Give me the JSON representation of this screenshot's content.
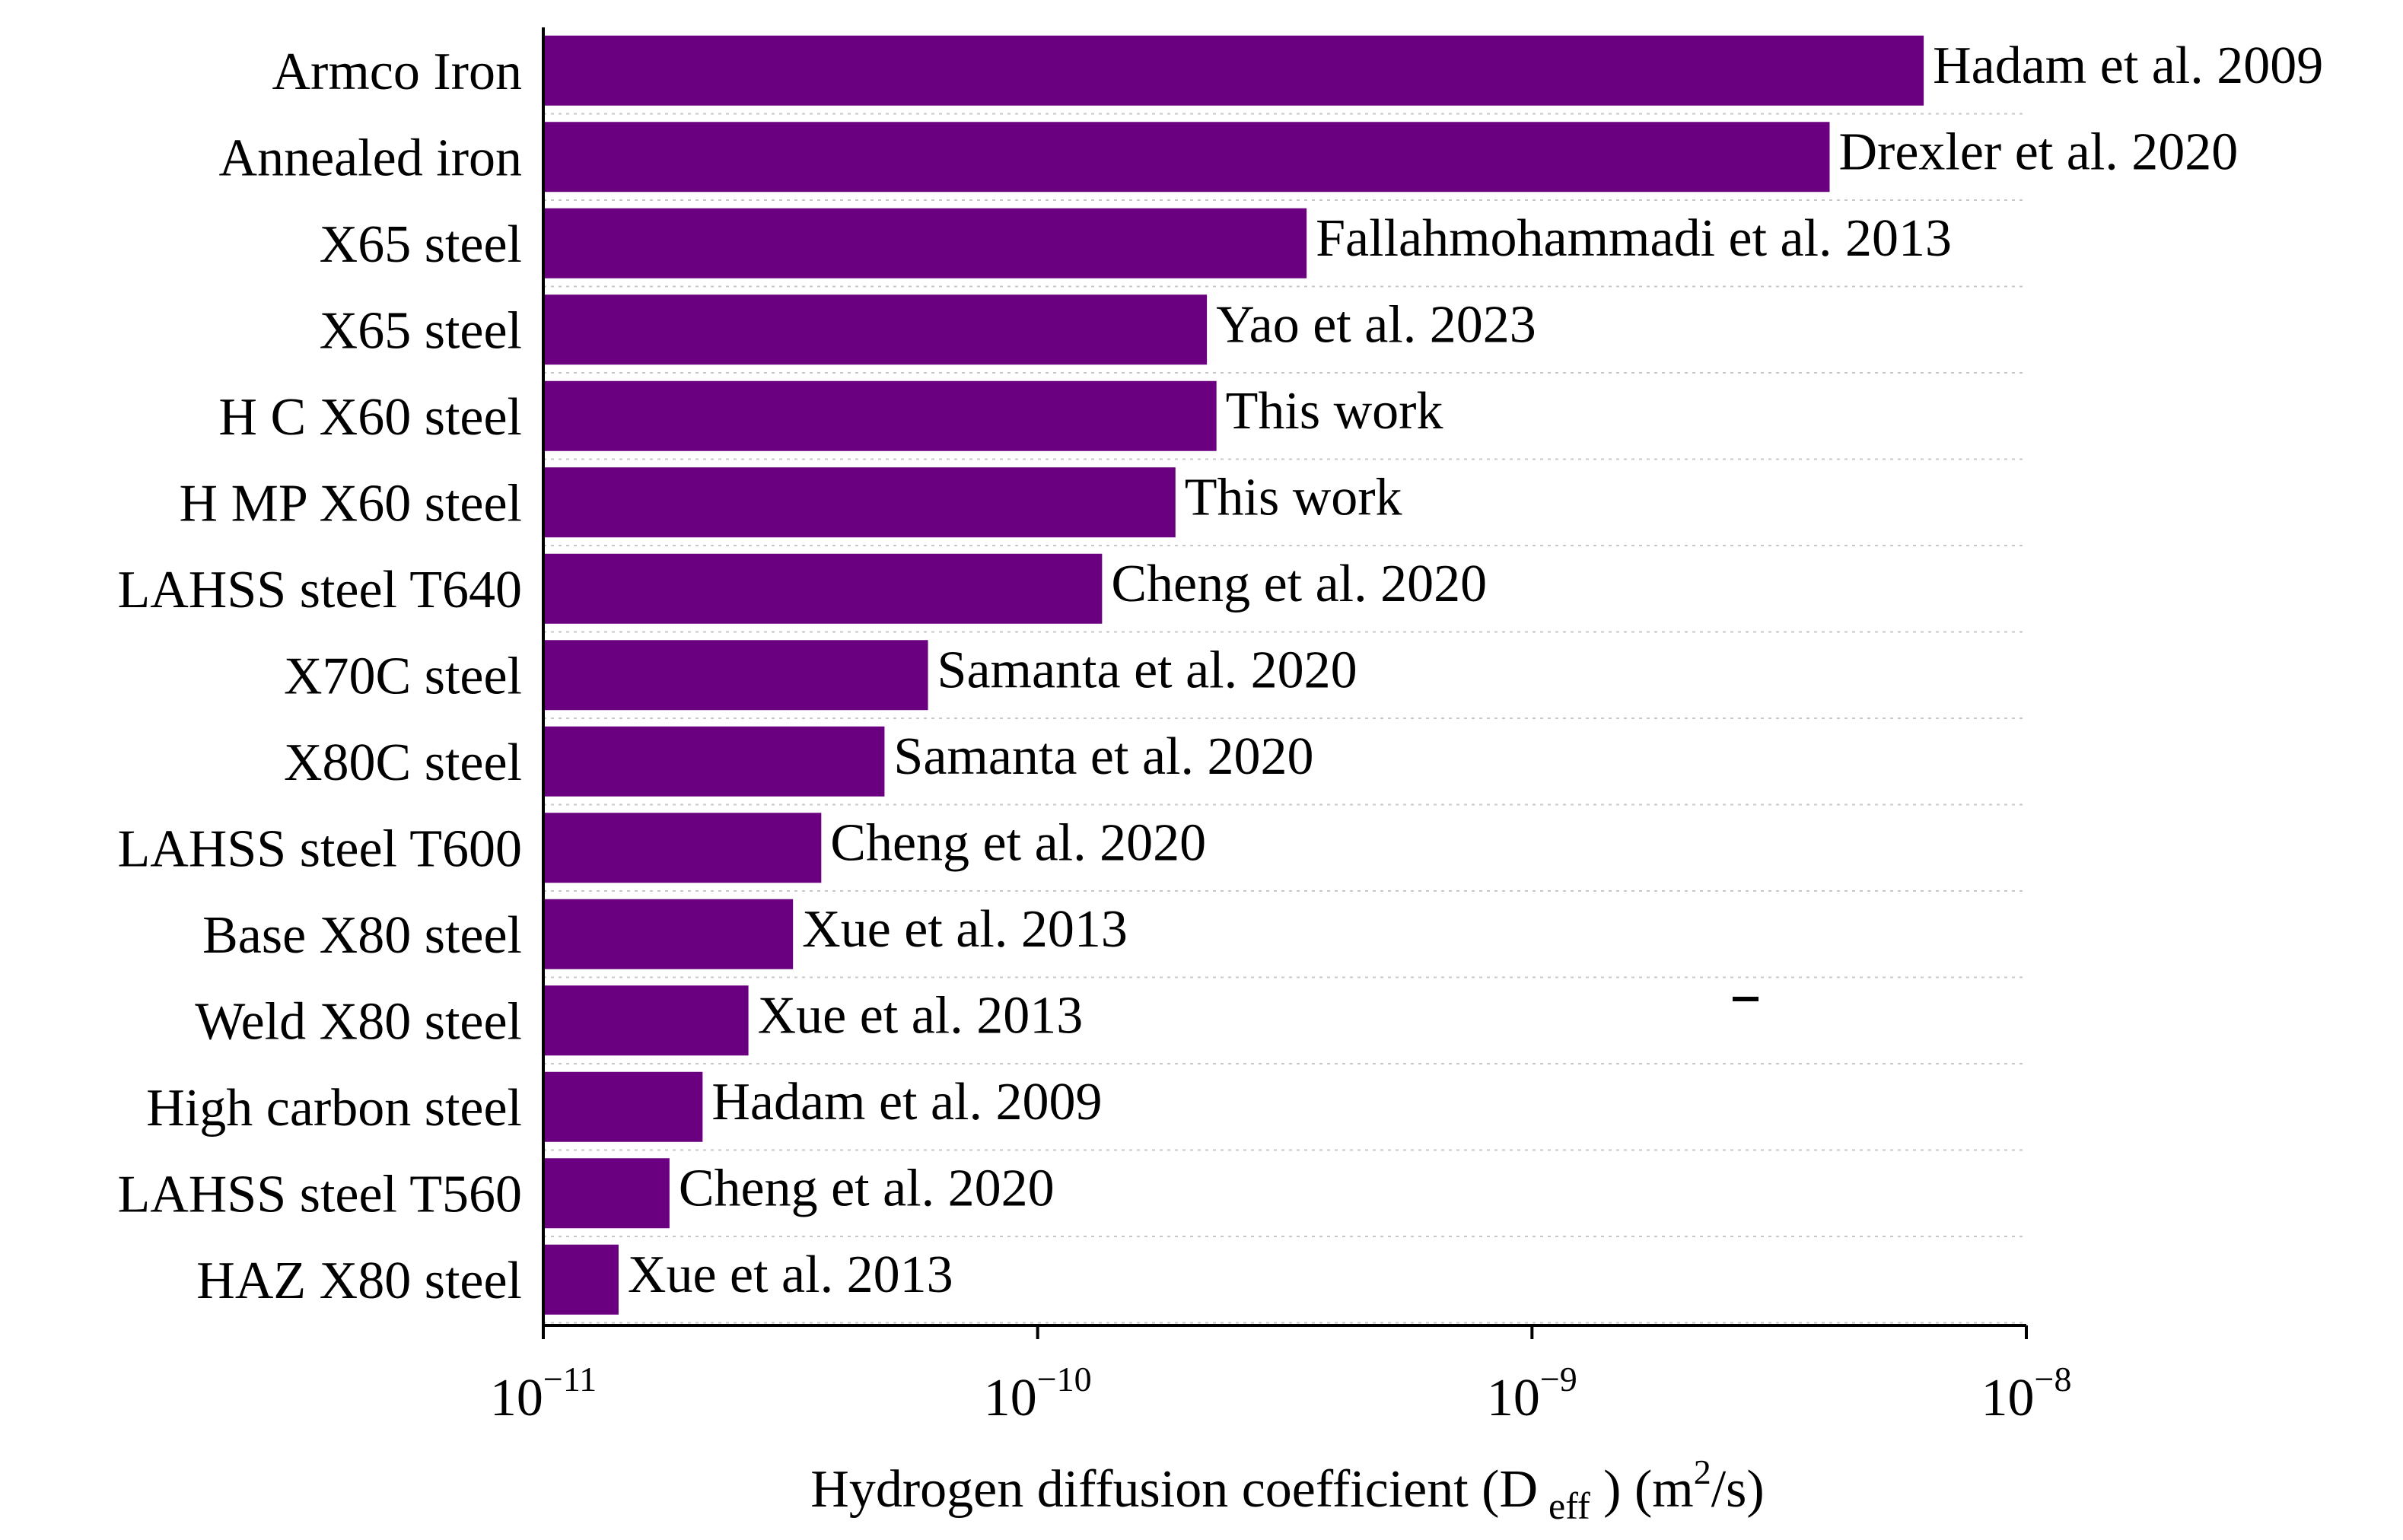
{
  "chart_data": {
    "type": "bar",
    "orientation": "horizontal",
    "x_scale": "log",
    "xlim": [
      1e-11,
      1e-08
    ],
    "categories": [
      "Armco Iron",
      "Annealed iron",
      "X65 steel",
      "X65 steel",
      "H C X60 steel",
      "H MP X60 steel",
      "LAHSS steel T640",
      "X70C steel",
      "X80C steel",
      "LAHSS steel T600",
      "Base X80 steel",
      "Weld X80 steel",
      "High carbon steel",
      "LAHSS steel T560",
      "HAZ X80 steel"
    ],
    "values": [
      6.2e-09,
      4e-09,
      3.5e-10,
      2.2e-10,
      2.3e-10,
      1.9e-10,
      1.35e-10,
      6e-11,
      4.9e-11,
      3.65e-11,
      3.2e-11,
      2.6e-11,
      2.1e-11,
      1.8e-11,
      1.42e-11
    ],
    "data_labels": [
      "Hadam et al. 2009",
      "Drexler et al. 2020",
      "Fallahmohammadi et al. 2013",
      "Yao et al. 2023",
      "This work",
      "This work",
      "Cheng et al. 2020",
      "Samanta et al. 2020",
      "Samanta et al. 2020",
      "Cheng et al. 2020",
      "Xue et al. 2013",
      "Xue et al. 2013",
      "Hadam et al. 2009",
      "Cheng et al. 2020",
      "Xue et al. 2013"
    ],
    "x_ticks": [
      {
        "base": "10",
        "exp": "−11"
      },
      {
        "base": "10",
        "exp": "−10"
      },
      {
        "base": "10",
        "exp": "−9"
      },
      {
        "base": "10",
        "exp": "−8"
      }
    ],
    "xlabel": {
      "main": "Hydrogen diffusion coefficient (D",
      "sub": "eff",
      "unit_pre": " ) (m",
      "unit_sup": "2",
      "unit_post": "/s)"
    },
    "grid": "horizontal dotted",
    "bar_color": "#6a0080"
  }
}
